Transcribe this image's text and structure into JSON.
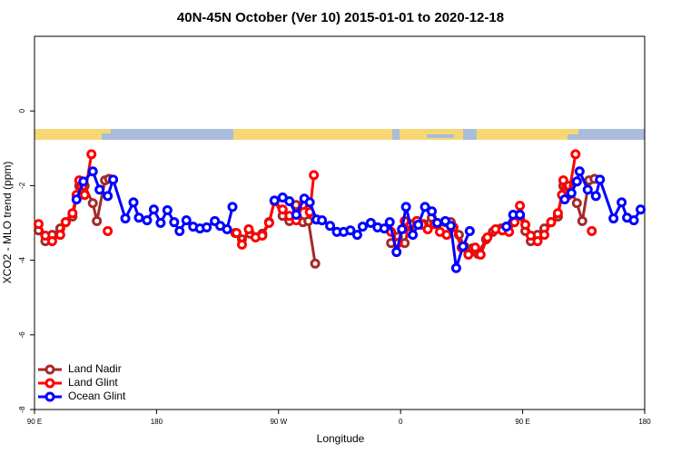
{
  "chart_data": {
    "type": "line",
    "title": "40N-45N October (Ver 10)   2015-01-01 to 2020-12-18",
    "xlabel": "Longitude",
    "ylabel": "XCO2 - MLO trend (ppm)",
    "xlim": [
      90,
      540
    ],
    "xticks": [
      {
        "value": 90,
        "label": "90 E"
      },
      180,
      {
        "value": 270,
        "label": "90 W"
      },
      {
        "value": 360,
        "label": "0"
      },
      {
        "value": 450,
        "label": "90 E"
      },
      {
        "value": 540,
        "label": "180"
      }
    ],
    "ylim": [
      -8,
      2
    ],
    "yticks": [
      0,
      -2,
      -4,
      -6,
      -8
    ],
    "legend": "bottom-left",
    "series": [
      {
        "name": "Land Nadir",
        "color": "#a52a2a",
        "x": [
          93,
          98,
          103,
          109,
          113,
          118,
          123,
          127,
          133,
          136,
          142,
          145,
          null,
          238,
          243,
          249,
          258,
          263,
          267,
          273,
          278,
          283,
          288,
          292,
          297,
          null,
          353,
          358,
          363,
          367,
          372,
          377,
          383,
          387,
          393,
          397,
          403,
          407,
          413,
          417,
          423,
          428,
          434,
          438,
          444,
          448,
          452,
          456,
          461,
          466,
          471,
          476,
          480,
          484,
          490,
          494,
          499,
          503
        ],
        "values": [
          -3.2,
          -3.49,
          -3.32,
          -3.15,
          -2.98,
          -2.83,
          -2.01,
          -2.01,
          -2.47,
          -2.95,
          -1.86,
          -1.82,
          null,
          -3.27,
          -3.44,
          -3.29,
          -3.29,
          -2.98,
          -2.4,
          -2.81,
          -2.95,
          -2.52,
          -2.98,
          -2.95,
          -4.09,
          null,
          -3.54,
          -3.37,
          -3.54,
          -3.03,
          -2.95,
          -3.03,
          -2.86,
          -3.03,
          -2.98,
          -2.98,
          -3.32,
          -3.63,
          -3.68,
          -3.83,
          -3.44,
          -3.24,
          -3.15,
          -3.1,
          -2.86,
          -2.81,
          -3.22,
          -3.49,
          -3.32,
          -3.15,
          -2.98,
          -2.83,
          -2.01,
          -2.01,
          -2.47,
          -2.95,
          -1.86,
          -1.82
        ]
      },
      {
        "name": "Land Glint",
        "color": "#ff0000",
        "x": [
          93,
          98,
          103,
          109,
          113,
          118,
          121,
          123,
          127,
          132,
          null,
          144,
          null,
          239,
          243,
          248,
          253,
          258,
          263,
          267,
          273,
          278,
          283,
          288,
          293,
          296,
          null,
          353,
          358,
          363,
          367,
          372,
          376,
          380,
          385,
          389,
          394,
          399,
          405,
          410,
          415,
          419,
          424,
          430,
          435,
          440,
          444,
          448,
          452,
          456,
          461,
          466,
          471,
          476,
          479,
          480,
          484,
          489,
          null,
          501
        ],
        "values": [
          -3.03,
          -3.34,
          -3.49,
          -3.32,
          -2.98,
          -2.74,
          -2.25,
          -1.86,
          -2.25,
          -1.16,
          null,
          -3.22,
          null,
          -3.27,
          -3.58,
          -3.17,
          -3.39,
          -3.34,
          -3.0,
          -2.42,
          -2.64,
          -2.81,
          -2.93,
          -2.52,
          -2.71,
          -1.72,
          null,
          -3.24,
          -3.54,
          -2.95,
          -3.27,
          -2.95,
          -3.05,
          -3.17,
          -3.03,
          -3.24,
          -3.32,
          -3.12,
          -3.66,
          -3.85,
          -3.66,
          -3.85,
          -3.39,
          -3.17,
          -3.2,
          -3.24,
          -2.98,
          -2.54,
          -3.05,
          -3.34,
          -3.49,
          -3.32,
          -2.98,
          -2.74,
          -2.25,
          -1.86,
          -2.25,
          -1.16,
          null,
          -3.22
        ]
      },
      {
        "name": "Ocean Glint",
        "color": "#0000ff",
        "x": [
          121,
          126,
          133,
          138,
          144,
          148,
          157,
          163,
          167,
          173,
          178,
          183,
          188,
          193,
          197,
          202,
          207,
          212,
          217,
          223,
          227,
          232,
          236,
          null,
          267,
          273,
          278,
          283,
          289,
          293,
          298,
          302,
          308,
          313,
          318,
          323,
          328,
          332,
          338,
          343,
          348,
          352,
          357,
          361,
          364,
          369,
          373,
          378,
          383,
          387,
          393,
          397,
          401,
          406,
          411,
          null,
          438,
          443,
          448,
          null,
          481,
          486,
          490,
          492,
          498,
          504,
          507,
          517,
          523,
          527,
          532,
          537
        ],
        "values": [
          -2.37,
          -1.89,
          -1.62,
          -2.11,
          -2.28,
          -1.84,
          -2.88,
          -2.45,
          -2.86,
          -2.93,
          -2.64,
          -3.0,
          -2.66,
          -2.98,
          -3.22,
          -2.93,
          -3.1,
          -3.15,
          -3.12,
          -2.95,
          -3.08,
          -3.17,
          -2.57,
          null,
          -2.4,
          -2.32,
          -2.42,
          -2.78,
          -2.35,
          -2.45,
          -2.91,
          -2.93,
          -3.08,
          -3.24,
          -3.24,
          -3.2,
          -3.32,
          -3.1,
          -3.0,
          -3.12,
          -3.15,
          -2.98,
          -3.78,
          -3.17,
          -2.57,
          -3.32,
          -3.05,
          -2.57,
          -2.69,
          -3.0,
          -2.95,
          -3.08,
          -4.21,
          -3.63,
          -3.22,
          null,
          -3.1,
          -2.78,
          -2.78,
          null,
          -2.37,
          -2.2,
          -1.89,
          -1.62,
          -2.11,
          -2.28,
          -1.84,
          -2.88,
          -2.45,
          -2.86,
          -2.93,
          -2.64
        ]
      }
    ]
  }
}
